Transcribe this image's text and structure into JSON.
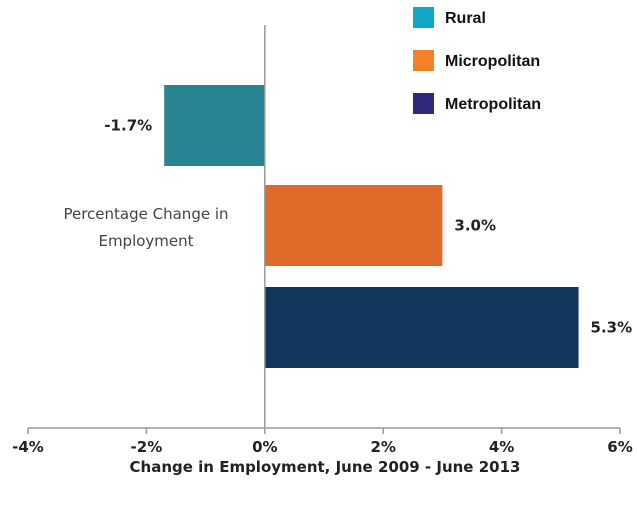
{
  "chart_data": {
    "type": "bar",
    "orientation": "horizontal",
    "category_label": "Percentage Change in Employment",
    "xlabel": "Change in Employment, June 2009 - June 2013",
    "xlim": [
      -4,
      6
    ],
    "x_ticks": [
      "-4%",
      "-2%",
      "0%",
      "2%",
      "4%",
      "6%"
    ],
    "legend_position": "top-right",
    "grid": false,
    "series": [
      {
        "name": "Rural",
        "value": -1.7,
        "label": "-1.7%",
        "color": "#2a8494",
        "legend_color": "#11a7c9"
      },
      {
        "name": "Micropolitan",
        "value": 3.0,
        "label": "3.0%",
        "color": "#de6b27",
        "legend_color": "#f48027"
      },
      {
        "name": "Metropolitan",
        "value": 5.3,
        "label": "5.3%",
        "color": "#12365c",
        "legend_color": "#2d2a7e"
      }
    ]
  }
}
